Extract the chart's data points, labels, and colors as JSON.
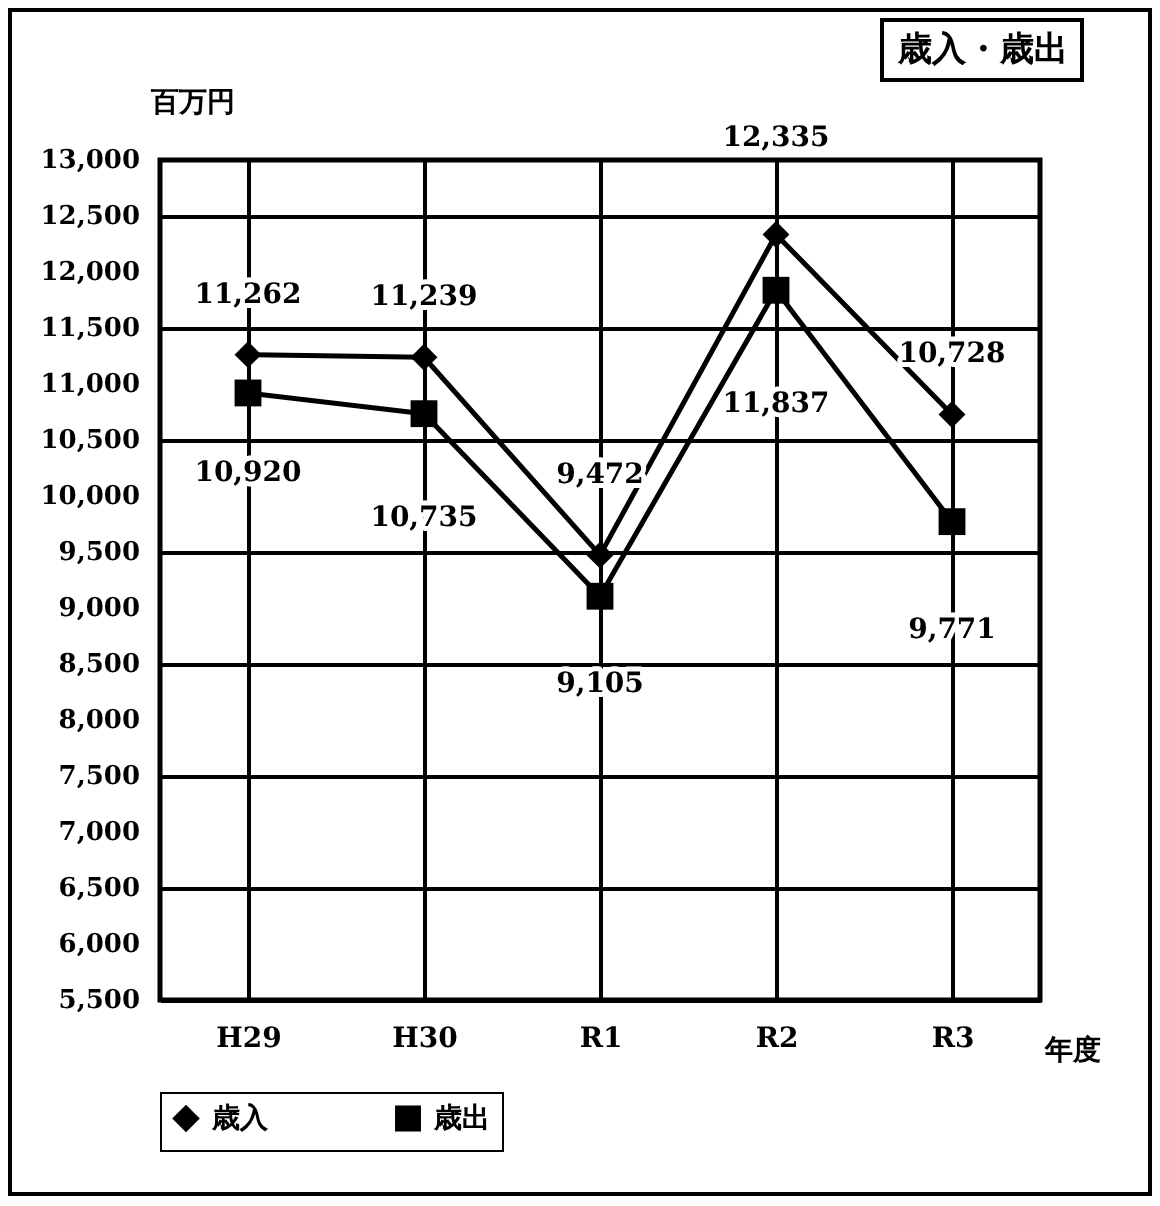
{
  "chart_data": {
    "type": "line",
    "title": "歳入・歳出",
    "ylabel": "百万円",
    "xlabel": "年度",
    "categories": [
      "H29",
      "H30",
      "R1",
      "R2",
      "R3"
    ],
    "series": [
      {
        "name": "歳入",
        "color": "#000000",
        "marker": "diamond",
        "values": [
          11262,
          11239,
          9472,
          12335,
          10728
        ],
        "value_labels": [
          "11,262",
          "11,239",
          "9,472",
          "12,335",
          "10,728"
        ]
      },
      {
        "name": "歳出",
        "color": "#000000",
        "marker": "square",
        "values": [
          10920,
          10735,
          9105,
          11837,
          9771
        ],
        "value_labels": [
          "10,920",
          "10,735",
          "9,105",
          "11,837",
          "9,771"
        ]
      }
    ],
    "ylim": [
      5500,
      13000
    ],
    "yticks": [
      {
        "value": 5500,
        "label": "5,500"
      },
      {
        "value": 6000,
        "label": "6,000"
      },
      {
        "value": 6500,
        "label": "6,500"
      },
      {
        "value": 7000,
        "label": "7,000"
      },
      {
        "value": 7500,
        "label": "7,500"
      },
      {
        "value": 8000,
        "label": "8,000"
      },
      {
        "value": 8500,
        "label": "8,500"
      },
      {
        "value": 9000,
        "label": "9,000"
      },
      {
        "value": 9500,
        "label": "9,500"
      },
      {
        "value": 10000,
        "label": "10,000"
      },
      {
        "value": 10500,
        "label": "10,500"
      },
      {
        "value": 11000,
        "label": "11,000"
      },
      {
        "value": 11500,
        "label": "11,500"
      },
      {
        "value": 12000,
        "label": "12,000"
      },
      {
        "value": 12500,
        "label": "12,500"
      },
      {
        "value": 13000,
        "label": "13,000"
      }
    ],
    "grid": true,
    "legend": "bottom",
    "line_style": "solid"
  }
}
